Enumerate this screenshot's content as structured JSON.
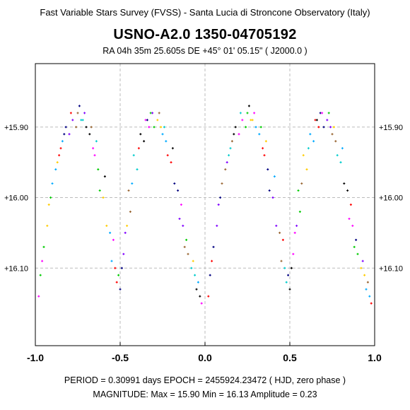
{
  "header": {
    "survey": "Fast Variable Stars Survey (FVSS) - Santa Lucia di Stroncone Observatory (Italy)",
    "star_name": "USNO-A2.0  1350-04705192",
    "coordinates": "RA  04h 35m 25.605s    DE   +45° 01' 05.15\"     ( J2000.0 )"
  },
  "footer": {
    "period_line": "PERIOD = 0.30991 days     EPOCH = 2455924.23472   ( HJD, zero phase )",
    "magnitude_line": "MAGNITUDE:  Max = 15.90   Min = 16.13   Amplitude = 0.23"
  },
  "chart_data": {
    "type": "scatter",
    "title": "USNO-A2.0  1350-04705192",
    "xlabel": "",
    "ylabel": "",
    "xlim": [
      -1.0,
      1.0
    ],
    "ylim": [
      15.81,
      16.21
    ],
    "y_inverted": true,
    "grid": true,
    "x_ticks": [
      -1.0,
      -0.5,
      0.0,
      0.5,
      1.0
    ],
    "x_tick_labels": [
      "-1.0",
      "-0.5",
      "0.0",
      "0.5",
      "1.0"
    ],
    "y_ticks": [
      15.9,
      16.0,
      16.1
    ],
    "y_tick_labels": [
      "+15.90",
      "+16.00",
      "+16.10"
    ],
    "period_days": 0.30991,
    "epoch_hjd": 2455924.23472,
    "mag_max": 15.9,
    "mag_min": 16.13,
    "amplitude": 0.23,
    "series_colors": [
      "#ff00ff",
      "#00cc00",
      "#ffcc00",
      "#00aaff",
      "#ff0000",
      "#000080",
      "#8000ff",
      "#996633",
      "#00cccc",
      "#000000"
    ],
    "series": [
      {
        "x": [
          -0.98,
          -0.95,
          -0.92,
          -0.88,
          -0.85,
          -0.82,
          -0.78,
          -0.75,
          -0.72,
          -0.68,
          -0.65,
          -0.62,
          -0.58,
          -0.55,
          -0.52,
          -0.49,
          -0.47,
          -0.45,
          -0.42,
          -0.38,
          -0.35,
          -0.32,
          -0.28,
          -0.25,
          -0.22,
          -0.18,
          -0.15,
          -0.12,
          -0.08,
          -0.05,
          -0.02
        ],
        "y": [
          16.14,
          16.07,
          16.01,
          15.96,
          15.93,
          15.9,
          15.89,
          15.88,
          15.89,
          15.91,
          15.94,
          15.99,
          16.04,
          16.09,
          16.12,
          16.1,
          16.05,
          15.99,
          15.94,
          15.91,
          15.89,
          15.88,
          15.89,
          15.91,
          15.94,
          15.98,
          16.03,
          16.07,
          16.1,
          16.13,
          16.15
        ]
      },
      {
        "x": [
          -0.97,
          -0.93,
          -0.9,
          -0.86,
          -0.83,
          -0.8,
          -0.76,
          -0.73,
          -0.7,
          -0.66,
          -0.63,
          -0.6,
          -0.56,
          -0.53,
          -0.5,
          -0.48,
          -0.44,
          -0.4,
          -0.36,
          -0.33,
          -0.3,
          -0.26,
          -0.23,
          -0.2,
          -0.16,
          -0.13,
          -0.1,
          -0.06,
          -0.03
        ],
        "y": [
          16.11,
          16.04,
          15.98,
          15.94,
          15.91,
          15.91,
          15.9,
          15.89,
          15.9,
          15.93,
          15.96,
          16.0,
          16.05,
          16.1,
          16.13,
          16.08,
          16.02,
          15.96,
          15.92,
          15.9,
          15.9,
          15.9,
          15.92,
          15.95,
          15.99,
          16.04,
          16.08,
          16.11,
          16.14
        ]
      },
      {
        "x": [
          -0.96,
          -0.91,
          -0.87,
          -0.84,
          -0.79,
          -0.74,
          -0.71,
          -0.67,
          -0.64,
          -0.59,
          -0.54,
          -0.51,
          -0.46,
          -0.43,
          -0.39,
          -0.34,
          -0.31,
          -0.27,
          -0.24,
          -0.19,
          -0.14,
          -0.11,
          -0.07,
          -0.04
        ],
        "y": [
          16.09,
          16.0,
          15.95,
          15.92,
          15.88,
          15.87,
          15.88,
          15.9,
          15.92,
          15.97,
          16.06,
          16.11,
          16.04,
          15.98,
          15.93,
          15.89,
          15.88,
          15.88,
          15.9,
          15.93,
          16.01,
          16.06,
          16.09,
          16.12
        ]
      },
      {
        "x": [
          0.02,
          0.05,
          0.08,
          0.12,
          0.15,
          0.18,
          0.22,
          0.25,
          0.28,
          0.32,
          0.35,
          0.38,
          0.42,
          0.45,
          0.48,
          0.51,
          0.53,
          0.55,
          0.58,
          0.62,
          0.65,
          0.68,
          0.72,
          0.75,
          0.78,
          0.82,
          0.85,
          0.88,
          0.92,
          0.95,
          0.98
        ],
        "y": [
          16.14,
          16.07,
          16.01,
          15.96,
          15.93,
          15.9,
          15.89,
          15.88,
          15.89,
          15.91,
          15.94,
          15.99,
          16.04,
          16.09,
          16.12,
          16.1,
          16.05,
          15.99,
          15.94,
          15.91,
          15.89,
          15.88,
          15.89,
          15.91,
          15.94,
          15.98,
          16.03,
          16.07,
          16.1,
          16.13,
          16.15
        ]
      },
      {
        "x": [
          0.03,
          0.07,
          0.1,
          0.14,
          0.17,
          0.2,
          0.24,
          0.27,
          0.3,
          0.34,
          0.37,
          0.4,
          0.44,
          0.47,
          0.5,
          0.52,
          0.56,
          0.6,
          0.64,
          0.67,
          0.7,
          0.74,
          0.77,
          0.8,
          0.84,
          0.87,
          0.9,
          0.94,
          0.97
        ],
        "y": [
          16.11,
          16.04,
          15.98,
          15.94,
          15.91,
          15.91,
          15.9,
          15.89,
          15.9,
          15.93,
          15.96,
          16.0,
          16.05,
          16.1,
          16.13,
          16.08,
          16.02,
          15.96,
          15.92,
          15.9,
          15.9,
          15.9,
          15.92,
          15.95,
          15.99,
          16.04,
          16.08,
          16.11,
          16.14
        ]
      },
      {
        "x": [
          0.04,
          0.09,
          0.13,
          0.16,
          0.21,
          0.26,
          0.29,
          0.33,
          0.36,
          0.41,
          0.46,
          0.49,
          0.54,
          0.57,
          0.61,
          0.66,
          0.69,
          0.73,
          0.76,
          0.81,
          0.86,
          0.89,
          0.93,
          0.96
        ],
        "y": [
          16.09,
          16.0,
          15.95,
          15.92,
          15.88,
          15.87,
          15.88,
          15.9,
          15.92,
          15.97,
          16.06,
          16.11,
          16.04,
          15.98,
          15.93,
          15.89,
          15.88,
          15.88,
          15.9,
          15.93,
          16.01,
          16.06,
          16.09,
          16.12
        ]
      }
    ]
  }
}
